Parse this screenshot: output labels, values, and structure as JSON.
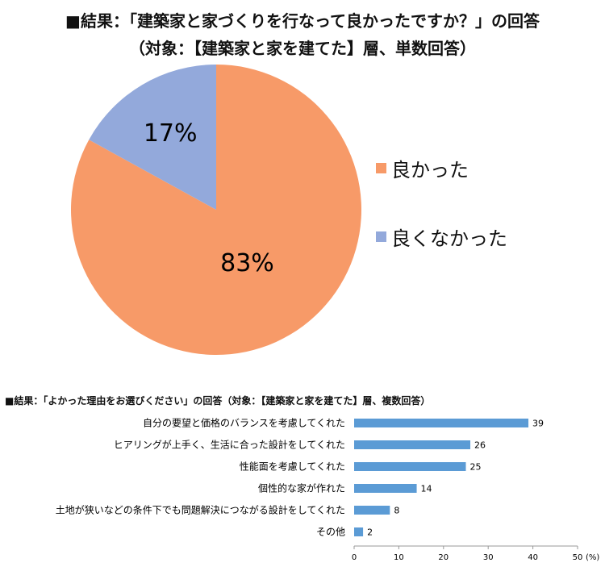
{
  "chart_data": [
    {
      "type": "pie",
      "title": "■結果：「建築家と家づくりを行なって良かったですか？」の回答",
      "subtitle": "（対象：【建築家と家を建てた】層、単数回答）",
      "slices": [
        {
          "label": "良かった",
          "value": 83,
          "value_label": "83%",
          "color": "#F79A68"
        },
        {
          "label": "良くなかった",
          "value": 17,
          "value_label": "17%",
          "color": "#93A9DB"
        }
      ],
      "legend_position": "right"
    },
    {
      "type": "bar",
      "orientation": "horizontal",
      "title": "■結果：「よかった理由をお選びください」の回答（対象：【建築家と家を建てた】層、複数回答）",
      "categories": [
        "自分の要望と価格のバランスを考慮してくれた",
        "ヒアリングが上手く、生活に合った設計をしてくれた",
        "性能面を考慮してくれた",
        "個性的な家が作れた",
        "土地が狭いなどの条件下でも問題解決につながる設計をしてくれた",
        "その他"
      ],
      "values": [
        39,
        26,
        25,
        14,
        8,
        2
      ],
      "xlim": [
        0,
        50
      ],
      "xticks": [
        0,
        10,
        20,
        30,
        40,
        50
      ],
      "unit": "(%)",
      "bar_color": "#5B9BD5",
      "grid": false
    }
  ]
}
